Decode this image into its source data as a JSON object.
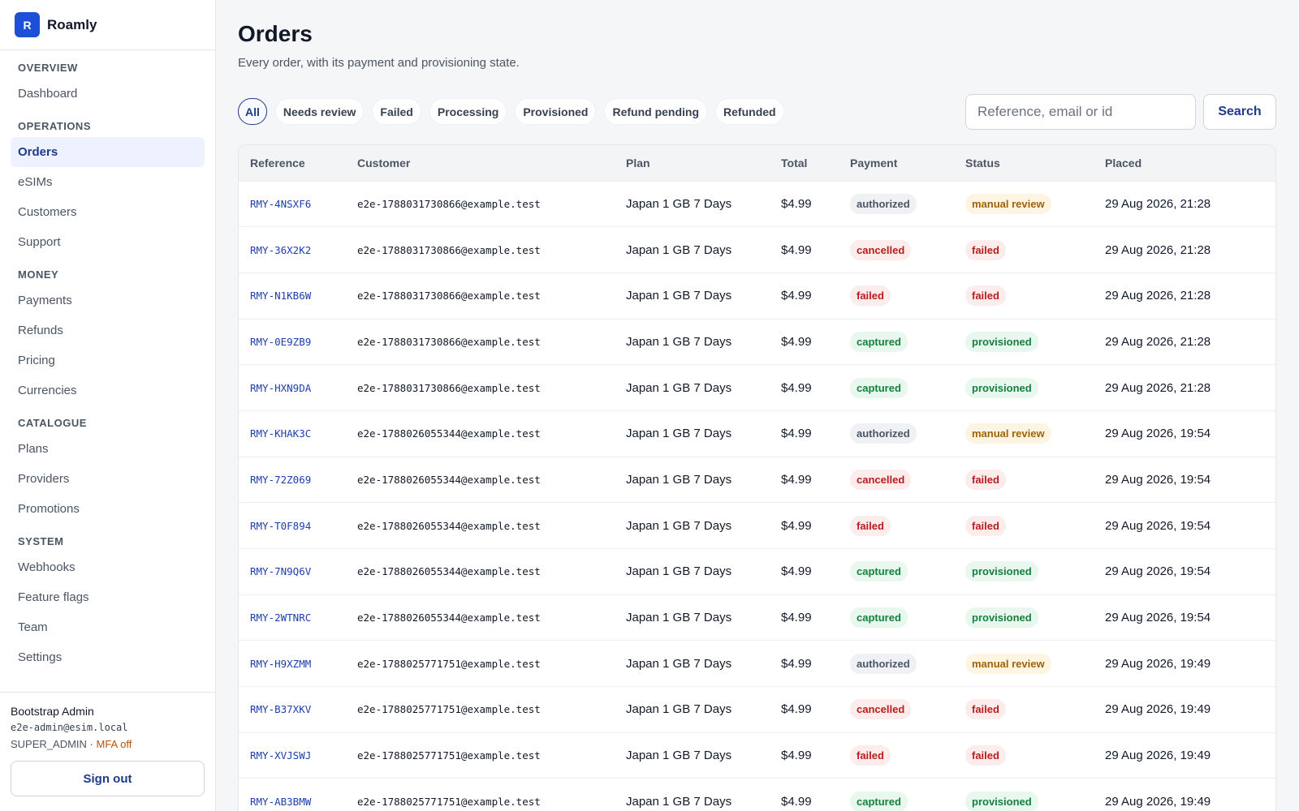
{
  "brand": {
    "logo_letter": "R",
    "name": "Roamly"
  },
  "sidebar": {
    "sections": [
      {
        "title": "OVERVIEW",
        "items": [
          {
            "label": "Dashboard",
            "active": false
          }
        ]
      },
      {
        "title": "OPERATIONS",
        "items": [
          {
            "label": "Orders",
            "active": true
          },
          {
            "label": "eSIMs",
            "active": false
          },
          {
            "label": "Customers",
            "active": false
          },
          {
            "label": "Support",
            "active": false
          }
        ]
      },
      {
        "title": "MONEY",
        "items": [
          {
            "label": "Payments",
            "active": false
          },
          {
            "label": "Refunds",
            "active": false
          },
          {
            "label": "Pricing",
            "active": false
          },
          {
            "label": "Currencies",
            "active": false
          }
        ]
      },
      {
        "title": "CATALOGUE",
        "items": [
          {
            "label": "Plans",
            "active": false
          },
          {
            "label": "Providers",
            "active": false
          },
          {
            "label": "Promotions",
            "active": false
          }
        ]
      },
      {
        "title": "SYSTEM",
        "items": [
          {
            "label": "Webhooks",
            "active": false
          },
          {
            "label": "Feature flags",
            "active": false
          },
          {
            "label": "Team",
            "active": false
          },
          {
            "label": "Settings",
            "active": false
          }
        ]
      }
    ],
    "user": {
      "name": "Bootstrap Admin",
      "email": "e2e-admin@esim.local",
      "role": "SUPER_ADMIN",
      "separator": " · ",
      "mfa": "MFA off"
    },
    "signout_label": "Sign out"
  },
  "page": {
    "title": "Orders",
    "subtitle": "Every order, with its payment and provisioning state."
  },
  "filters": [
    {
      "label": "All",
      "active": true
    },
    {
      "label": "Needs review",
      "active": false
    },
    {
      "label": "Failed",
      "active": false
    },
    {
      "label": "Processing",
      "active": false
    },
    {
      "label": "Provisioned",
      "active": false
    },
    {
      "label": "Refund pending",
      "active": false
    },
    {
      "label": "Refunded",
      "active": false
    }
  ],
  "search": {
    "placeholder": "Reference, email or id",
    "value": "",
    "button_label": "Search"
  },
  "table": {
    "columns": [
      "Reference",
      "Customer",
      "Plan",
      "Total",
      "Payment",
      "Status",
      "Placed"
    ],
    "rows": [
      {
        "reference": "RMY-4NSXF6",
        "customer": "e2e-1788031730866@example.test",
        "plan": "Japan 1 GB 7 Days",
        "total": "$4.99",
        "payment": "authorized",
        "status": "manual review",
        "placed": "29 Aug 2026, 21:28"
      },
      {
        "reference": "RMY-36X2K2",
        "customer": "e2e-1788031730866@example.test",
        "plan": "Japan 1 GB 7 Days",
        "total": "$4.99",
        "payment": "cancelled",
        "status": "failed",
        "placed": "29 Aug 2026, 21:28"
      },
      {
        "reference": "RMY-N1KB6W",
        "customer": "e2e-1788031730866@example.test",
        "plan": "Japan 1 GB 7 Days",
        "total": "$4.99",
        "payment": "failed",
        "status": "failed",
        "placed": "29 Aug 2026, 21:28"
      },
      {
        "reference": "RMY-0E9ZB9",
        "customer": "e2e-1788031730866@example.test",
        "plan": "Japan 1 GB 7 Days",
        "total": "$4.99",
        "payment": "captured",
        "status": "provisioned",
        "placed": "29 Aug 2026, 21:28"
      },
      {
        "reference": "RMY-HXN9DA",
        "customer": "e2e-1788031730866@example.test",
        "plan": "Japan 1 GB 7 Days",
        "total": "$4.99",
        "payment": "captured",
        "status": "provisioned",
        "placed": "29 Aug 2026, 21:28"
      },
      {
        "reference": "RMY-KHAK3C",
        "customer": "e2e-1788026055344@example.test",
        "plan": "Japan 1 GB 7 Days",
        "total": "$4.99",
        "payment": "authorized",
        "status": "manual review",
        "placed": "29 Aug 2026, 19:54"
      },
      {
        "reference": "RMY-72Z069",
        "customer": "e2e-1788026055344@example.test",
        "plan": "Japan 1 GB 7 Days",
        "total": "$4.99",
        "payment": "cancelled",
        "status": "failed",
        "placed": "29 Aug 2026, 19:54"
      },
      {
        "reference": "RMY-T0F894",
        "customer": "e2e-1788026055344@example.test",
        "plan": "Japan 1 GB 7 Days",
        "total": "$4.99",
        "payment": "failed",
        "status": "failed",
        "placed": "29 Aug 2026, 19:54"
      },
      {
        "reference": "RMY-7N9Q6V",
        "customer": "e2e-1788026055344@example.test",
        "plan": "Japan 1 GB 7 Days",
        "total": "$4.99",
        "payment": "captured",
        "status": "provisioned",
        "placed": "29 Aug 2026, 19:54"
      },
      {
        "reference": "RMY-2WTNRC",
        "customer": "e2e-1788026055344@example.test",
        "plan": "Japan 1 GB 7 Days",
        "total": "$4.99",
        "payment": "captured",
        "status": "provisioned",
        "placed": "29 Aug 2026, 19:54"
      },
      {
        "reference": "RMY-H9XZMM",
        "customer": "e2e-1788025771751@example.test",
        "plan": "Japan 1 GB 7 Days",
        "total": "$4.99",
        "payment": "authorized",
        "status": "manual review",
        "placed": "29 Aug 2026, 19:49"
      },
      {
        "reference": "RMY-B37XKV",
        "customer": "e2e-1788025771751@example.test",
        "plan": "Japan 1 GB 7 Days",
        "total": "$4.99",
        "payment": "cancelled",
        "status": "failed",
        "placed": "29 Aug 2026, 19:49"
      },
      {
        "reference": "RMY-XVJSWJ",
        "customer": "e2e-1788025771751@example.test",
        "plan": "Japan 1 GB 7 Days",
        "total": "$4.99",
        "payment": "failed",
        "status": "failed",
        "placed": "29 Aug 2026, 19:49"
      },
      {
        "reference": "RMY-AB3BMW",
        "customer": "e2e-1788025771751@example.test",
        "plan": "Japan 1 GB 7 Days",
        "total": "$4.99",
        "payment": "captured",
        "status": "provisioned",
        "placed": "29 Aug 2026, 19:49"
      }
    ]
  },
  "colors": {
    "brand": "#1d4fd8",
    "accent": "#1e3a8a",
    "success": "#15803d",
    "danger": "#b91c1c",
    "warning": "#a16207"
  }
}
